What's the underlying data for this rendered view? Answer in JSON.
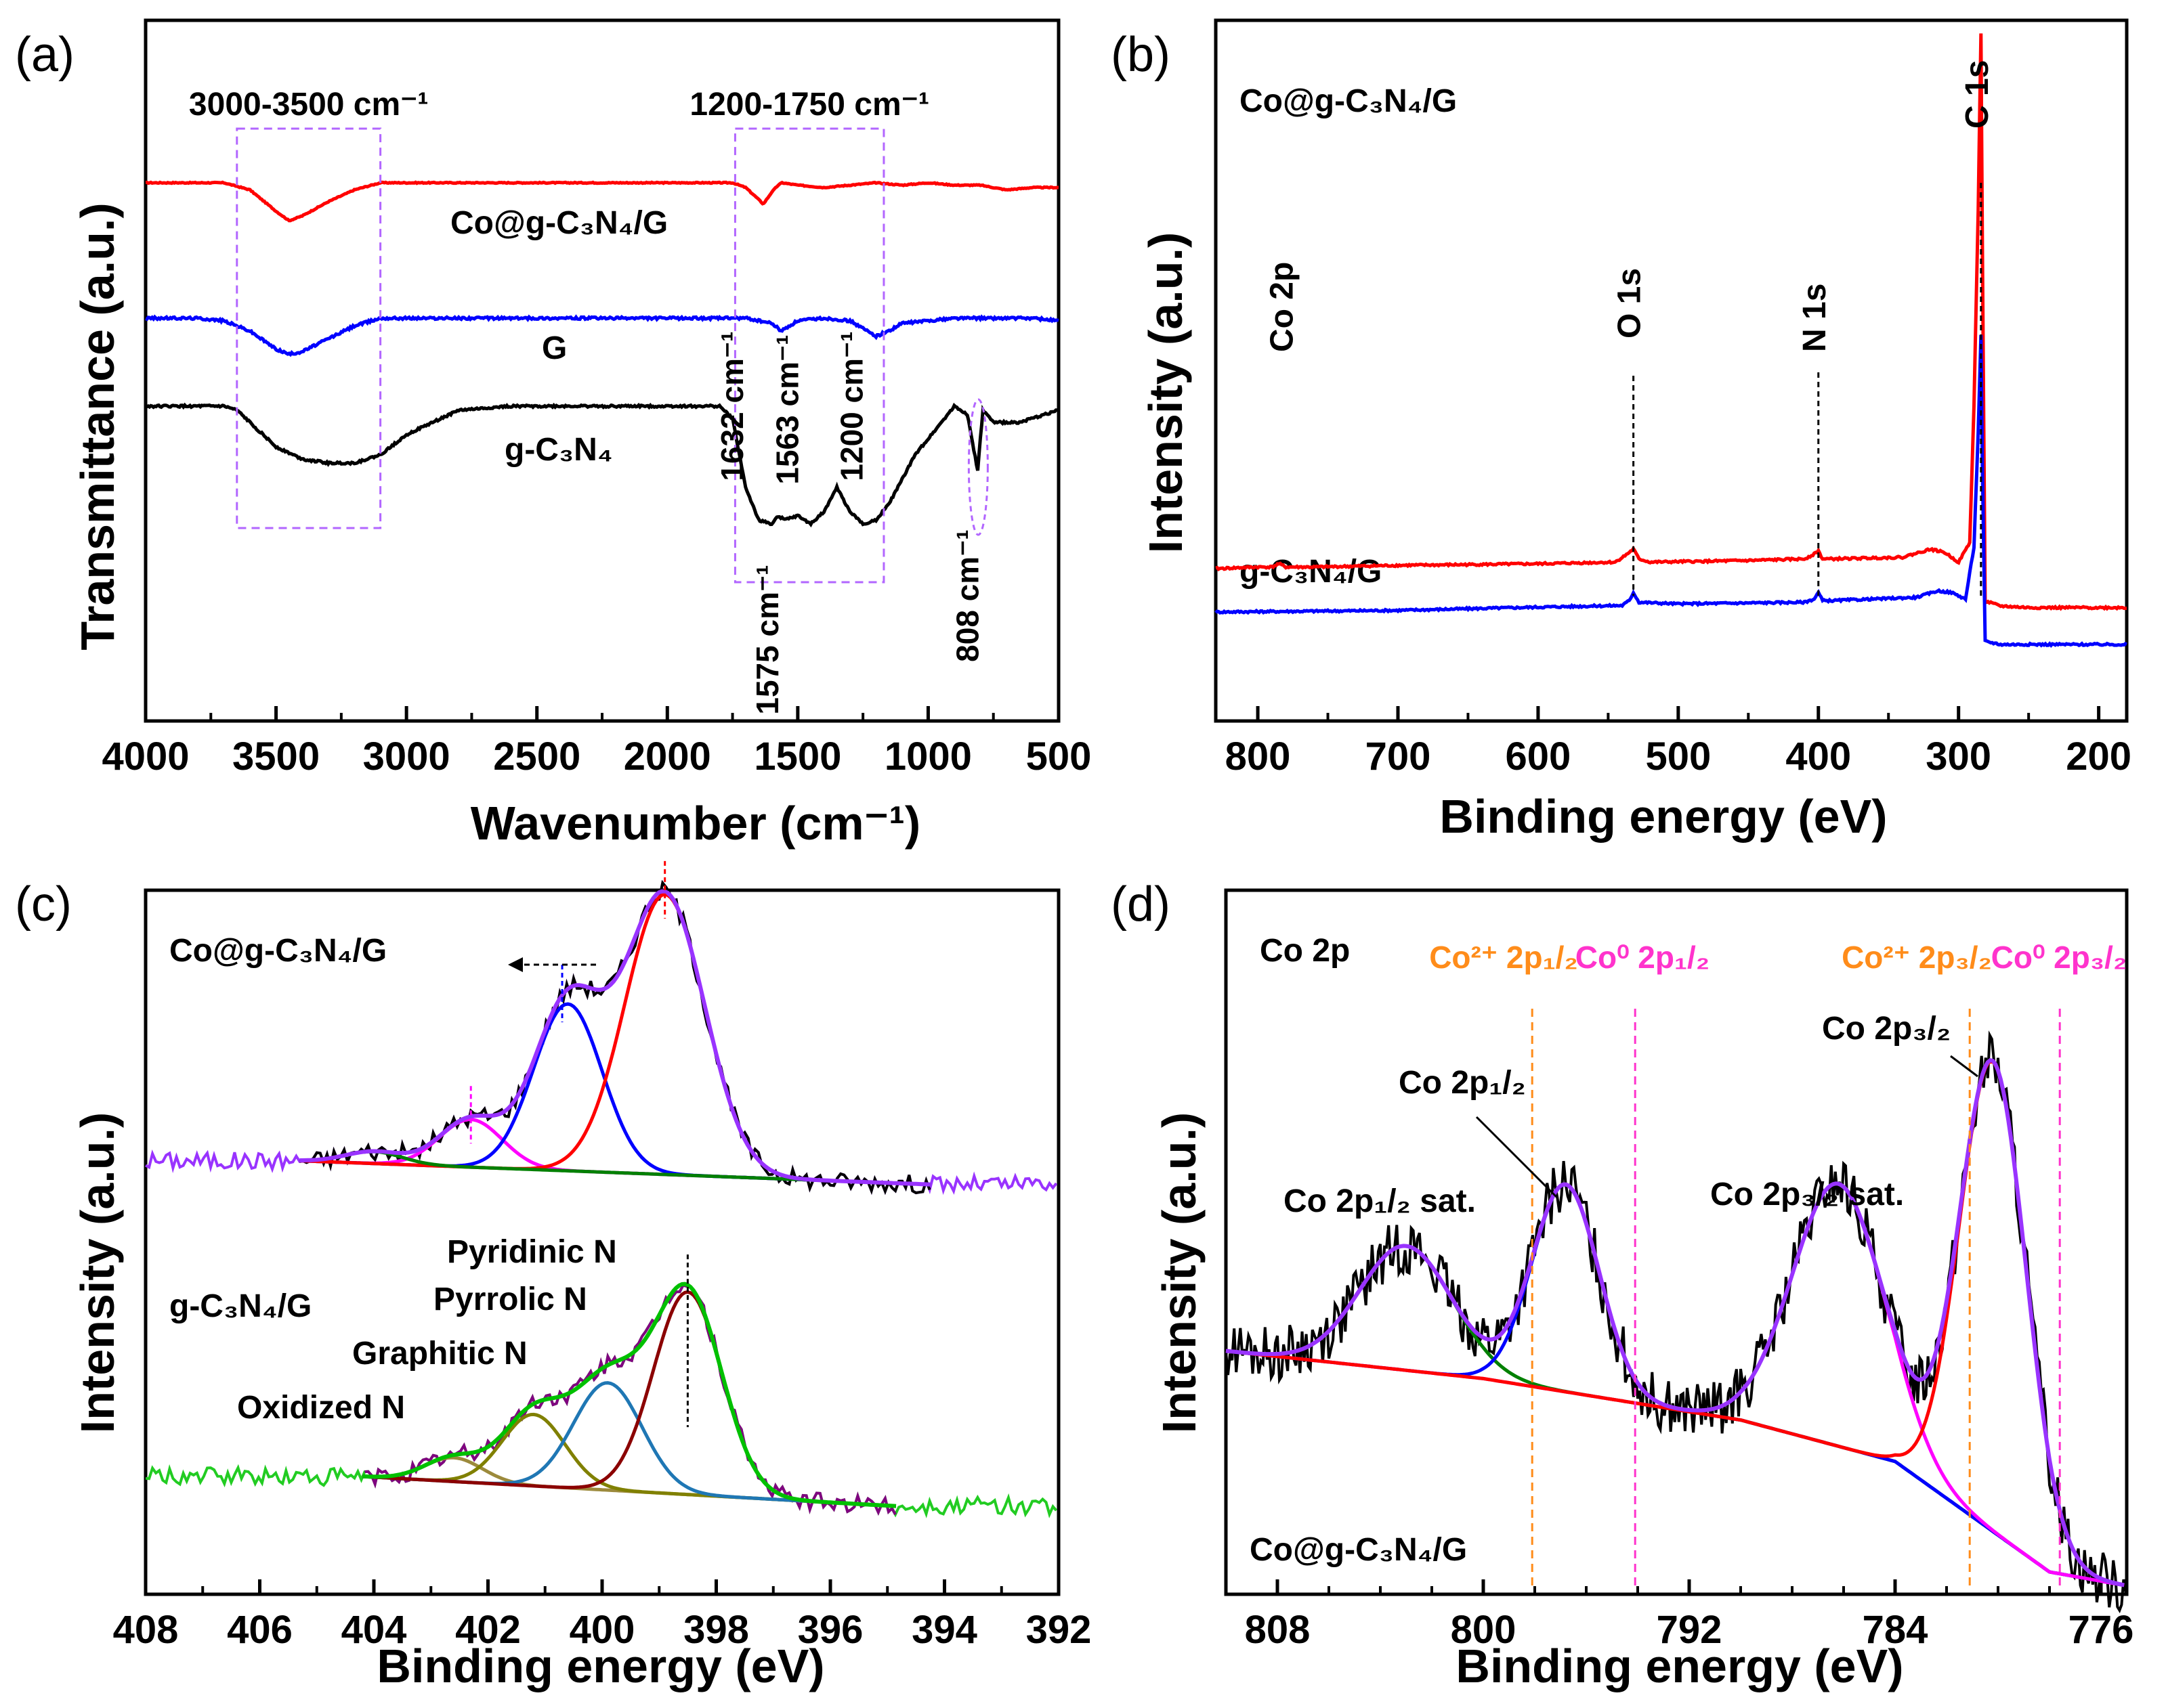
{
  "chart_data": [
    {
      "panel": "(a)",
      "type": "line",
      "xlabel": "Wavenumber (cm⁻¹)",
      "ylabel": "Transmittance (a.u.)",
      "xlim": [
        4000,
        500
      ],
      "x_ticks": [
        "4000",
        "3500",
        "3000",
        "2500",
        "2000",
        "1500",
        "1000",
        "500"
      ],
      "x_tick_values": [
        4000,
        3500,
        3000,
        2500,
        2000,
        1500,
        1000,
        500
      ],
      "region_labels": [
        "3000-3500 cm⁻¹",
        "1200-1750 cm⁻¹"
      ],
      "regions": [
        [
          3650,
          3100
        ],
        [
          1740,
          1170
        ]
      ],
      "series": [
        {
          "name": "Co@g-C₃N₄/G",
          "color": "#ff0000",
          "x": [
            4000,
            3700,
            3600,
            3500,
            3450,
            3400,
            3300,
            3200,
            3100,
            3000,
            2000,
            1750,
            1700,
            1660,
            1632,
            1600,
            1575,
            1560,
            1500,
            1400,
            1300,
            1200,
            1100,
            1000,
            900,
            800,
            700,
            600,
            500
          ],
          "y": [
            100,
            100,
            97,
            88,
            84,
            86,
            92,
            97,
            100,
            100,
            100,
            100,
            98,
            94,
            91,
            96,
            99,
            100,
            99,
            98,
            99,
            100,
            99,
            100,
            99,
            99,
            97,
            98,
            98
          ]
        },
        {
          "name": "G",
          "color": "#0000ff",
          "x": [
            4000,
            3800,
            3700,
            3600,
            3500,
            3450,
            3400,
            3300,
            3200,
            3100,
            3000,
            2000,
            1700,
            1600,
            1563,
            1500,
            1400,
            1300,
            1250,
            1200,
            1150,
            1100,
            1000,
            900,
            800,
            700,
            600,
            500
          ],
          "y": [
            100,
            100,
            99,
            95,
            88,
            86,
            87,
            92,
            97,
            100,
            100,
            100,
            100,
            98,
            95,
            99,
            100,
            99,
            96,
            93,
            95,
            98,
            99,
            100,
            100,
            100,
            100,
            99
          ]
        },
        {
          "name": "g-C₃N₄",
          "color": "#000000",
          "x": [
            4000,
            3900,
            3800,
            3700,
            3650,
            3600,
            3500,
            3400,
            3300,
            3200,
            3100,
            3000,
            2800,
            2600,
            2400,
            2200,
            2000,
            1800,
            1750,
            1700,
            1650,
            1600,
            1575,
            1550,
            1500,
            1450,
            1400,
            1350,
            1300,
            1250,
            1200,
            1150,
            1100,
            1050,
            1000,
            950,
            900,
            850,
            810,
            800,
            790,
            750,
            700,
            650,
            600,
            550,
            500
          ],
          "y": [
            100,
            100,
            100,
            100,
            99,
            96,
            90,
            87,
            86,
            86,
            88,
            93,
            99,
            100,
            100,
            100,
            100,
            100,
            97,
            80,
            72,
            71,
            73,
            72,
            73,
            71,
            74,
            80,
            74,
            71,
            72,
            76,
            82,
            88,
            92,
            96,
            100,
            98,
            84,
            92,
            99,
            96,
            96,
            96,
            97,
            98,
            99
          ]
        }
      ],
      "peak_labels": [
        "1632 cm⁻¹",
        "1563 cm⁻¹",
        "1200 cm⁻¹",
        "1575 cm⁻¹",
        "808 cm⁻¹"
      ],
      "peak_positions": [
        1632,
        1563,
        1200,
        1575,
        808
      ]
    },
    {
      "panel": "(b)",
      "type": "line",
      "xlabel": "Binding energy (eV)",
      "ylabel": "Intensity (a.u.)",
      "xlim": [
        830,
        180
      ],
      "x_ticks": [
        "800",
        "700",
        "600",
        "500",
        "400",
        "300",
        "200"
      ],
      "x_tick_values": [
        800,
        700,
        600,
        500,
        400,
        300,
        200
      ],
      "series": [
        {
          "name": "Co@g-C₃N₄/G",
          "color": "#ff0000",
          "x": [
            830,
            800,
            790,
            785,
            780,
            760,
            700,
            600,
            545,
            538,
            532,
            528,
            520,
            450,
            410,
            403,
            400,
            397,
            390,
            340,
            320,
            310,
            300,
            292,
            289,
            286,
            284,
            283,
            281,
            270,
            250,
            180
          ],
          "y": [
            100,
            101,
            101,
            103,
            101,
            101,
            102,
            103,
            104,
            108,
            112,
            106,
            104,
            105,
            106,
            109,
            111,
            106,
            106,
            107,
            112,
            110,
            104,
            116,
            200,
            320,
            430,
            300,
            80,
            77,
            76,
            76
          ]
        },
        {
          "name": "g-C₃N₄/G",
          "color": "#0000ff",
          "x": [
            830,
            700,
            600,
            540,
            535,
            532,
            528,
            500,
            410,
            403,
            400,
            397,
            390,
            330,
            315,
            305,
            295,
            289,
            286,
            284,
            283,
            281,
            270,
            250,
            180
          ],
          "y": [
            40,
            41,
            43,
            44,
            47,
            52,
            46,
            45,
            46,
            48,
            52,
            47,
            47,
            49,
            53,
            52,
            48,
            80,
            150,
            210,
            130,
            22,
            20,
            20,
            20
          ]
        }
      ],
      "peak_labels": [
        "Co 2p",
        "O 1s",
        "N 1s",
        "C 1s"
      ],
      "peak_positions": [
        780,
        532,
        400,
        284
      ]
    },
    {
      "panel": "(c)",
      "type": "line",
      "xlabel": "Binding energy (eV)",
      "ylabel": "Intensity (a.u.)",
      "xlim": [
        408,
        392
      ],
      "x_ticks": [
        "408",
        "406",
        "404",
        "402",
        "400",
        "398",
        "396",
        "394",
        "392"
      ],
      "x_tick_values": [
        408,
        406,
        404,
        402,
        400,
        398,
        396,
        394,
        392
      ],
      "groups": [
        {
          "name": "Co@g-C₃N₄/G",
          "offset": 0.54,
          "baseline_from": 0.04,
          "baseline_to": 0.0,
          "components": [
            {
              "label": "",
              "center": 402.3,
              "height": 0.08,
              "width": 0.55,
              "color": "#ff00ff"
            },
            {
              "label": "",
              "center": 400.6,
              "height": 0.28,
              "width": 0.6,
              "color": "#0000ff"
            },
            {
              "label": "",
              "center": 398.9,
              "height": 0.47,
              "width": 0.7,
              "color": "#ff0000"
            },
            {
              "label": "",
              "center": 404.0,
              "height": 0.02,
              "width": 0.5,
              "color": "#008000"
            }
          ],
          "envelope_color": "#9933ff",
          "raw_color": "#000000",
          "range": [
            405.3,
            394.2
          ],
          "noise_color": "#9933ff",
          "vlines": [
            398.9,
            400.7,
            402.3
          ],
          "vline_colors": [
            "#ff0000",
            "#0000ff",
            "#ff00ff"
          ]
        },
        {
          "name": "g-C₃N₄/G",
          "offset": 0.0,
          "baseline_from": 0.05,
          "baseline_to": 0.0,
          "components": [
            {
              "label": "Oxidized N",
              "center": 402.6,
              "height": 0.04,
              "width": 0.5,
              "color": "#9c8a3c"
            },
            {
              "label": "Graphitic N",
              "center": 401.2,
              "height": 0.12,
              "width": 0.55,
              "color": "#808000"
            },
            {
              "label": "Pyrrolic N",
              "center": 399.9,
              "height": 0.18,
              "width": 0.6,
              "color": "#1f77b4"
            },
            {
              "label": "Pyridinic N",
              "center": 398.5,
              "height": 0.34,
              "width": 0.6,
              "color": "#8b0000"
            }
          ],
          "envelope_color": "#00c000",
          "raw_color": "#800080",
          "range": [
            404.2,
            394.8
          ],
          "noise_color": "#22cc22",
          "vlines": [
            398.5
          ],
          "vline_colors": [
            "#000000"
          ]
        }
      ]
    },
    {
      "panel": "(d)",
      "type": "line",
      "xlabel": "Binding energy (eV)",
      "ylabel": "Intensity (a.u.)",
      "xlim": [
        810,
        775
      ],
      "x_ticks": [
        "808",
        "800",
        "792",
        "784",
        "776"
      ],
      "x_tick_values": [
        808,
        800,
        792,
        784,
        776
      ],
      "title": "Co 2p",
      "sample": "Co@g-C₃N₄/G",
      "ref_lines": [
        {
          "label": "Co²⁺ 2p₁/₂",
          "position": 798.1,
          "color": "#ff8c1a"
        },
        {
          "label": "Co⁰ 2p₁/₂",
          "position": 794.1,
          "color": "#ff33cc"
        },
        {
          "label": "Co²⁺ 2p₃/₂",
          "position": 781.1,
          "color": "#ff8c1a"
        },
        {
          "label": "Co⁰ 2p₃/₂",
          "position": 777.6,
          "color": "#ff33cc"
        }
      ],
      "components": [
        {
          "label": "Co 2p₁/₂ sat.",
          "center": 803.0,
          "height": 0.18,
          "width": 1.8,
          "color": "#008000"
        },
        {
          "label": "Co 2p₁/₂",
          "center": 796.8,
          "height": 0.3,
          "width": 1.3,
          "color": "#0000ff"
        },
        {
          "label": "Co 2p₃/₂ sat.",
          "center": 786.2,
          "height": 0.38,
          "width": 1.8,
          "color": "#ff00ff"
        },
        {
          "label": "Co 2p₃/₂",
          "center": 780.2,
          "height": 0.68,
          "width": 1.3,
          "color": "#ff0000"
        }
      ],
      "baseline": {
        "x": [
          810,
          800,
          790,
          784,
          778,
          775
        ],
        "y": [
          0.4,
          0.36,
          0.3,
          0.24,
          0.08,
          0.06
        ]
      }
    }
  ],
  "panel_labels": {
    "a": "(a)",
    "b": "(b)",
    "c": "(c)",
    "d": "(d)"
  },
  "axis_labels": {
    "a_x": "Wavenumber (cm⁻¹)",
    "a_y": "Transmittance (a.u.)",
    "b_x": "Binding energy (eV)",
    "b_y": "Intensity (a.u.)",
    "c_x": "Binding energy (eV)",
    "c_y": "Intensity (a.u.)",
    "d_x": "Binding energy (eV)",
    "d_y": "Intensity (a.u.)"
  },
  "series_labels": {
    "a1": "Co@g-C₃N₄/G",
    "a2": "G",
    "a3": "g-C₃N₄",
    "b1": "Co@g-C₃N₄/G",
    "b2": "g-C₃N₄/G",
    "c1": "Co@g-C₃N₄/G",
    "c2": "g-C₃N₄/G",
    "d_title": "Co 2p",
    "d_sample": "Co@g-C₃N₄/G"
  },
  "colors": {
    "red": "#ff0000",
    "blue": "#0000ff",
    "black": "#000000",
    "violet": "#9933ff",
    "green": "#22cc22",
    "orange": "#ff8c1a",
    "magenta": "#ff33cc",
    "navy": "#1a237e",
    "box": "#b266ff"
  }
}
